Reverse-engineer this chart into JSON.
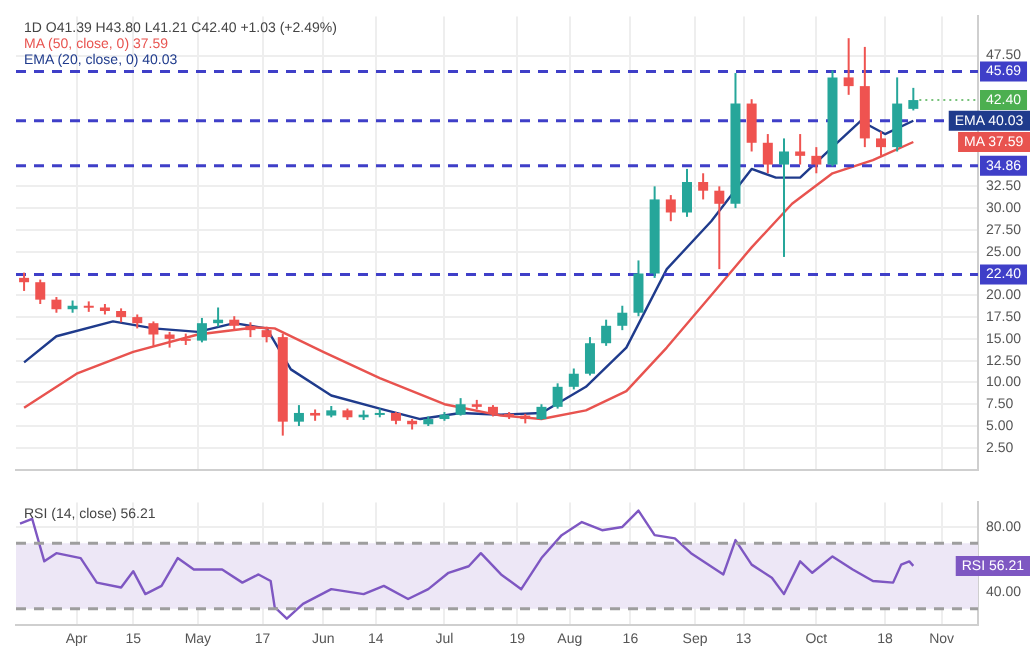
{
  "chart_data": [
    {
      "type": "candlestick",
      "subtitle": "1D O41.39 H43.80 L41.21 C42.40 +1.03 (+2.49%)",
      "annotations": [
        "MA (50, close, 0) 37.59",
        "EMA (20, close, 0) 40.03",
        {
          "text": "42.40",
          "x": "--10-25",
          "y": 42.4
        }
      ],
      "x": [
        "--03-19",
        "--03-23",
        "--03-27",
        "--03-31",
        "--04-04",
        "--04-08",
        "--04-12",
        "--04-16",
        "--04-20",
        "--04-24",
        "--04-28",
        "--05-02",
        "--05-06",
        "--05-10",
        "--05-14",
        "--05-18",
        "--05-22",
        "--05-26",
        "--05-30",
        "--06-03",
        "--06-07",
        "--06-11",
        "--06-15",
        "--06-19",
        "--06-23",
        "--06-27",
        "--07-01",
        "--07-05",
        "--07-09",
        "--07-13",
        "--07-17",
        "--07-21",
        "--07-25",
        "--07-29",
        "--08-02",
        "--08-06",
        "--08-10",
        "--08-14",
        "--08-18",
        "--08-22",
        "--08-26",
        "--08-30",
        "--09-03",
        "--09-07",
        "--09-11",
        "--09-15",
        "--09-19",
        "--09-23",
        "--09-27",
        "--10-01",
        "--10-05",
        "--10-09",
        "--10-13",
        "--10-17",
        "--10-21",
        "--10-25"
      ],
      "ohlc": [
        [
          22.0,
          22.6,
          20.5,
          21.5
        ],
        [
          21.5,
          21.8,
          19.0,
          19.5
        ],
        [
          19.5,
          19.8,
          18.0,
          18.4
        ],
        [
          18.4,
          19.4,
          18.0,
          18.8
        ],
        [
          18.8,
          19.3,
          18.1,
          18.6
        ],
        [
          18.6,
          19.0,
          17.8,
          18.2
        ],
        [
          18.2,
          18.5,
          16.9,
          17.5
        ],
        [
          17.5,
          17.8,
          16.2,
          16.8
        ],
        [
          16.8,
          17.0,
          14.2,
          15.5
        ],
        [
          15.5,
          15.8,
          14.0,
          15.0
        ],
        [
          15.0,
          15.6,
          14.3,
          14.8
        ],
        [
          14.8,
          17.4,
          14.6,
          16.8
        ],
        [
          16.8,
          18.6,
          16.4,
          17.2
        ],
        [
          17.2,
          17.6,
          15.9,
          16.5
        ],
        [
          16.5,
          16.9,
          15.2,
          16.0
        ],
        [
          16.0,
          16.4,
          14.6,
          15.2
        ],
        [
          15.2,
          15.6,
          3.9,
          5.5
        ],
        [
          5.5,
          7.4,
          5.0,
          6.5
        ],
        [
          6.5,
          6.9,
          5.6,
          6.2
        ],
        [
          6.2,
          7.3,
          6.0,
          6.8
        ],
        [
          6.8,
          7.0,
          5.7,
          6.0
        ],
        [
          6.0,
          6.8,
          5.7,
          6.3
        ],
        [
          6.3,
          7.0,
          6.0,
          6.5
        ],
        [
          6.5,
          6.6,
          5.2,
          5.6
        ],
        [
          5.6,
          5.8,
          4.6,
          5.2
        ],
        [
          5.2,
          6.1,
          5.0,
          5.8
        ],
        [
          5.8,
          6.6,
          5.6,
          6.3
        ],
        [
          6.3,
          8.2,
          6.2,
          7.5
        ],
        [
          7.5,
          8.0,
          6.9,
          7.2
        ],
        [
          7.2,
          7.4,
          6.1,
          6.4
        ],
        [
          6.4,
          6.6,
          5.8,
          6.2
        ],
        [
          6.2,
          6.4,
          5.3,
          5.8
        ],
        [
          5.8,
          7.5,
          5.7,
          7.2
        ],
        [
          7.2,
          9.9,
          7.0,
          9.5
        ],
        [
          9.5,
          11.6,
          9.2,
          11.0
        ],
        [
          11.0,
          15.2,
          10.8,
          14.5
        ],
        [
          14.5,
          17.2,
          14.2,
          16.5
        ],
        [
          16.5,
          18.8,
          16.0,
          18.0
        ],
        [
          18.0,
          24.0,
          17.6,
          22.5
        ],
        [
          22.5,
          32.5,
          22.0,
          31.0
        ],
        [
          31.0,
          31.5,
          28.5,
          29.5
        ],
        [
          29.5,
          34.5,
          29.0,
          33.0
        ],
        [
          33.0,
          34.0,
          31.0,
          32.0
        ],
        [
          32.0,
          32.5,
          23.0,
          30.5
        ],
        [
          30.5,
          45.5,
          30.0,
          42.0
        ],
        [
          42.0,
          42.5,
          36.5,
          37.5
        ],
        [
          37.5,
          38.5,
          34.0,
          35.0
        ],
        [
          35.0,
          38.0,
          24.4,
          36.5
        ],
        [
          36.5,
          38.5,
          35.0,
          36.0
        ],
        [
          36.0,
          37.0,
          34.0,
          35.0
        ],
        [
          35.0,
          45.8,
          34.8,
          45.0
        ],
        [
          45.0,
          49.5,
          43.0,
          44.0
        ],
        [
          44.0,
          48.5,
          37.0,
          38.0
        ],
        [
          38.0,
          38.8,
          36.0,
          37.0
        ],
        [
          37.0,
          45.0,
          36.5,
          42.0
        ],
        [
          41.39,
          43.8,
          41.21,
          42.4
        ]
      ],
      "colors": [
        "#ef5350",
        "#ef5350",
        "#ef5350",
        "#26a69a",
        "#ef5350",
        "#ef5350",
        "#ef5350",
        "#ef5350",
        "#ef5350",
        "#ef5350",
        "#ef5350",
        "#26a69a",
        "#26a69a",
        "#ef5350",
        "#ef5350",
        "#ef5350",
        "#ef5350",
        "#26a69a",
        "#ef5350",
        "#26a69a",
        "#ef5350",
        "#26a69a",
        "#26a69a",
        "#ef5350",
        "#ef5350",
        "#26a69a",
        "#26a69a",
        "#26a69a",
        "#ef5350",
        "#ef5350",
        "#ef5350",
        "#ef5350",
        "#26a69a",
        "#26a69a",
        "#26a69a",
        "#26a69a",
        "#26a69a",
        "#26a69a",
        "#26a69a",
        "#26a69a",
        "#ef5350",
        "#26a69a",
        "#ef5350",
        "#ef5350",
        "#26a69a",
        "#ef5350",
        "#ef5350",
        "#26a69a",
        "#ef5350",
        "#ef5350",
        "#26a69a",
        "#ef5350",
        "#ef5350",
        "#ef5350",
        "#26a69a",
        "#26a69a"
      ],
      "series": [
        {
          "type": "line",
          "name": "MA",
          "color": "#e8534f",
          "x": [
            "--03-19",
            "--04-01",
            "--04-15",
            "--05-01",
            "--05-15",
            "--05-20",
            "--06-01",
            "--06-15",
            "--07-01",
            "--07-15",
            "--07-25",
            "--08-05",
            "--08-15",
            "--08-25",
            "--09-05",
            "--09-15",
            "--09-25",
            "--10-05",
            "--10-15",
            "--10-25"
          ],
          "values": [
            7.1,
            11.0,
            13.5,
            15.5,
            16.3,
            16.2,
            13.5,
            10.5,
            7.5,
            6.2,
            5.8,
            6.8,
            9.0,
            14.0,
            20.0,
            25.5,
            30.5,
            34.0,
            35.5,
            37.59
          ],
          "value_labels": [
            null,
            null,
            null,
            null,
            null,
            null,
            null,
            null,
            null,
            null,
            null,
            null,
            null,
            null,
            null,
            null,
            null,
            null,
            null,
            "37.59"
          ]
        },
        {
          "type": "line",
          "name": "EMA",
          "color": "#1f3b8c",
          "x": [
            "--03-19",
            "--03-27",
            "--04-10",
            "--04-20",
            "--05-01",
            "--05-10",
            "--05-18",
            "--05-24",
            "--06-03",
            "--06-15",
            "--06-25",
            "--07-05",
            "--07-15",
            "--07-25",
            "--08-05",
            "--08-15",
            "--08-25",
            "--09-05",
            "--09-15",
            "--09-21",
            "--09-27",
            "--10-05",
            "--10-12",
            "--10-18",
            "--10-25"
          ],
          "values": [
            12.3,
            15.3,
            17.0,
            16.2,
            15.8,
            16.8,
            16.2,
            11.5,
            8.5,
            7.0,
            5.8,
            6.5,
            6.3,
            6.5,
            9.5,
            14.0,
            23.0,
            28.5,
            34.5,
            33.5,
            33.5,
            37.0,
            40.0,
            38.5,
            40.03
          ],
          "value_labels": [
            null,
            null,
            null,
            null,
            null,
            null,
            null,
            null,
            null,
            null,
            null,
            null,
            null,
            null,
            null,
            null,
            null,
            null,
            null,
            null,
            null,
            null,
            null,
            null,
            "40.03"
          ]
        }
      ],
      "ref_lines": [
        {
          "axis": "y",
          "value": 45.69,
          "label": "45.69",
          "color": "#3f3fc8",
          "line_style": "dashed"
        },
        {
          "axis": "y",
          "value": 40.03,
          "color": "#3f3fc8",
          "line_style": "dashed"
        },
        {
          "axis": "y",
          "value": 34.86,
          "label": "34.86",
          "color": "#3f3fc8",
          "line_style": "dashed"
        },
        {
          "axis": "y",
          "value": 22.4,
          "label": "22.40",
          "color": "#3f3fc8",
          "line_style": "dashed"
        }
      ],
      "xlim": [
        "--03-17",
        "--11-10"
      ],
      "xticks": [
        {
          "value": "--04-01",
          "label": null
        },
        {
          "value": "--04-15",
          "label": null
        },
        {
          "value": "--05-01",
          "label": null
        },
        {
          "value": "--05-17",
          "label": null
        },
        {
          "value": "--06-01",
          "label": null
        },
        {
          "value": "--06-14",
          "label": null
        },
        {
          "value": "--07-01",
          "label": null
        },
        {
          "value": "--07-19",
          "label": null
        },
        {
          "value": "--08-01",
          "label": null
        },
        {
          "value": "--08-16",
          "label": null
        },
        {
          "value": "--09-01",
          "label": null
        },
        {
          "value": "--09-13",
          "label": null
        },
        {
          "value": "--10-01",
          "label": null
        },
        {
          "value": "--10-18",
          "label": null
        },
        {
          "value": "--11-01",
          "label": null
        }
      ],
      "ylim": [
        0,
        52
      ],
      "yticks": [
        {
          "value": 2.5,
          "label": "2.50"
        },
        {
          "value": 5,
          "label": "5.00"
        },
        {
          "value": 7.5,
          "label": "7.50"
        },
        {
          "value": 10,
          "label": "10.00"
        },
        {
          "value": 12.5,
          "label": "12.50"
        },
        {
          "value": 15,
          "label": "15.00"
        },
        {
          "value": 17.5,
          "label": "17.50"
        },
        {
          "value": 20,
          "label": "20.00"
        },
        {
          "value": 25,
          "label": "25.00"
        },
        {
          "value": 27.5,
          "label": "27.50"
        },
        {
          "value": 30,
          "label": "30.00"
        },
        {
          "value": 32.5,
          "label": "32.50"
        },
        {
          "value": 47.5,
          "label": "47.50"
        }
      ],
      "tick_labels": "y",
      "grid": true,
      "legend": false
    },
    {
      "type": "line",
      "title": "RSI (14, close) 56.21",
      "series": [
        {
          "name": "RSI",
          "color": "#7e57c2",
          "x": [
            "--03-18",
            "--03-21",
            "--03-24",
            "--03-27",
            "--04-02",
            "--04-06",
            "--04-12",
            "--04-15",
            "--04-18",
            "--04-22",
            "--04-26",
            "--04-30",
            "--05-07",
            "--05-12",
            "--05-16",
            "--05-19",
            "--05-20",
            "--05-23",
            "--05-27",
            "--06-03",
            "--06-11",
            "--06-16",
            "--06-22",
            "--06-27",
            "--07-02",
            "--07-07",
            "--07-10",
            "--07-15",
            "--07-20",
            "--07-25",
            "--07-30",
            "--08-04",
            "--08-09",
            "--08-14",
            "--08-18",
            "--08-22",
            "--08-27",
            "--08-31",
            "--09-08",
            "--09-11",
            "--09-15",
            "--09-20",
            "--09-23",
            "--09-27",
            "--09-30",
            "--10-05",
            "--10-10",
            "--10-15",
            "--10-20",
            "--10-22",
            "--10-24",
            "--10-25"
          ],
          "values": [
            82,
            85,
            59,
            64,
            61,
            46,
            43,
            53,
            39,
            44,
            61,
            54,
            54,
            46,
            51,
            47,
            31,
            24,
            33,
            42,
            39,
            44,
            36,
            42,
            52,
            56,
            64,
            51,
            42,
            61,
            75,
            83,
            78,
            80,
            90,
            75,
            73,
            64,
            51,
            72,
            57,
            49,
            39,
            59,
            52,
            62,
            54,
            47,
            46,
            57,
            59,
            56.21
          ],
          "value_labels": [
            null,
            null,
            null,
            null,
            null,
            null,
            null,
            null,
            null,
            null,
            null,
            null,
            null,
            null,
            null,
            null,
            null,
            null,
            null,
            null,
            null,
            null,
            null,
            null,
            null,
            null,
            null,
            null,
            null,
            null,
            null,
            null,
            null,
            null,
            null,
            null,
            null,
            null,
            null,
            null,
            null,
            null,
            null,
            null,
            null,
            null,
            null,
            null,
            null,
            null,
            null,
            "56.21"
          ]
        }
      ],
      "bands": [
        {
          "axis": "y",
          "from": 30,
          "to": 70,
          "color": "#ede7f6"
        }
      ],
      "ref_lines": [
        {
          "axis": "y",
          "value": 70,
          "color": "#9e9e9e",
          "line_style": "dashed"
        },
        {
          "axis": "y",
          "value": 30,
          "color": "#9e9e9e",
          "line_style": "dashed"
        }
      ],
      "xlim": [
        "--03-17",
        "--11-10"
      ],
      "xticks": [
        {
          "value": "--04-01",
          "label": "Apr"
        },
        {
          "value": "--04-15",
          "label": "15"
        },
        {
          "value": "--05-01",
          "label": "May"
        },
        {
          "value": "--05-17",
          "label": "17"
        },
        {
          "value": "--06-01",
          "label": "Jun"
        },
        {
          "value": "--06-14",
          "label": "14"
        },
        {
          "value": "--07-01",
          "label": "Jul"
        },
        {
          "value": "--07-19",
          "label": "19"
        },
        {
          "value": "--08-01",
          "label": "Aug"
        },
        {
          "value": "--08-16",
          "label": "16"
        },
        {
          "value": "--09-01",
          "label": "Sep"
        },
        {
          "value": "--09-13",
          "label": "13"
        },
        {
          "value": "--10-01",
          "label": "Oct"
        },
        {
          "value": "--10-18",
          "label": "18"
        },
        {
          "value": "--11-01",
          "label": "Nov"
        }
      ],
      "ylim": [
        20,
        95
      ],
      "yticks": [
        {
          "value": 40,
          "label": "40.00"
        },
        {
          "value": 80,
          "label": "80.00"
        }
      ],
      "grid": true,
      "legend": false
    }
  ]
}
